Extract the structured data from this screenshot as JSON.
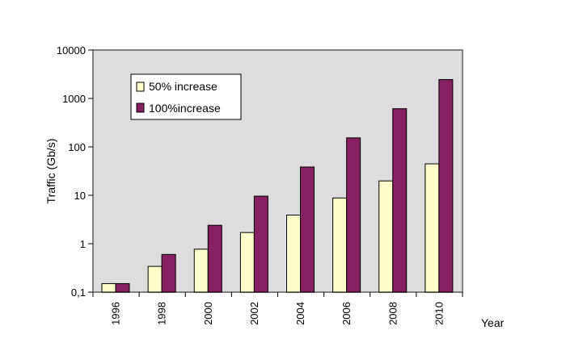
{
  "chart_data": {
    "type": "bar",
    "title": "",
    "xlabel": "Year",
    "ylabel": "Traffic (Gb/s)",
    "y_scale": "log",
    "ylim": [
      0.1,
      10000
    ],
    "y_ticks": [
      {
        "value": 0.1,
        "label": "0,1"
      },
      {
        "value": 1,
        "label": "1"
      },
      {
        "value": 10,
        "label": "10"
      },
      {
        "value": 100,
        "label": "100"
      },
      {
        "value": 1000,
        "label": "1000"
      },
      {
        "value": 10000,
        "label": "10000"
      }
    ],
    "categories": [
      "1996",
      "1998",
      "2000",
      "2002",
      "2004",
      "2006",
      "2008",
      "2010"
    ],
    "series": [
      {
        "name": "50% increase",
        "color": "#ffffcc",
        "values": [
          0.15,
          0.34,
          0.77,
          1.7,
          3.9,
          8.8,
          19.8,
          44.6
        ]
      },
      {
        "name": "100%increase",
        "color": "#862060",
        "values": [
          0.15,
          0.6,
          2.4,
          9.6,
          38.4,
          153.6,
          614,
          2458
        ]
      }
    ],
    "legend_placement": "top-left",
    "grid": false,
    "plot_background": "#dddddd"
  }
}
